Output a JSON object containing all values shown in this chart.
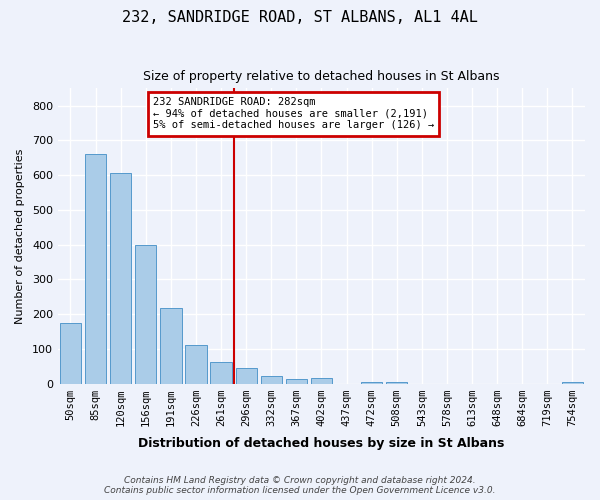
{
  "title": "232, SANDRIDGE ROAD, ST ALBANS, AL1 4AL",
  "subtitle": "Size of property relative to detached houses in St Albans",
  "xlabel": "Distribution of detached houses by size in St Albans",
  "ylabel": "Number of detached properties",
  "bar_labels": [
    "50sqm",
    "85sqm",
    "120sqm",
    "156sqm",
    "191sqm",
    "226sqm",
    "261sqm",
    "296sqm",
    "332sqm",
    "367sqm",
    "402sqm",
    "437sqm",
    "472sqm",
    "508sqm",
    "543sqm",
    "578sqm",
    "613sqm",
    "648sqm",
    "684sqm",
    "719sqm",
    "754sqm"
  ],
  "bar_values": [
    175,
    660,
    605,
    400,
    218,
    110,
    62,
    45,
    22,
    12,
    15,
    0,
    5,
    3,
    0,
    0,
    0,
    0,
    0,
    0,
    5
  ],
  "bar_color": "#aacce8",
  "bar_edge_color": "#5599cc",
  "ylim": [
    0,
    850
  ],
  "yticks": [
    0,
    100,
    200,
    300,
    400,
    500,
    600,
    700,
    800
  ],
  "vline_x": 6.5,
  "vline_color": "#cc0000",
  "box_text_line1": "232 SANDRIDGE ROAD: 282sqm",
  "box_text_line2": "← 94% of detached houses are smaller (2,191)",
  "box_text_line3": "5% of semi-detached houses are larger (126) →",
  "box_color": "#cc0000",
  "footer_line1": "Contains HM Land Registry data © Crown copyright and database right 2024.",
  "footer_line2": "Contains public sector information licensed under the Open Government Licence v3.0.",
  "bg_color": "#eef2fb",
  "grid_color": "#ffffff"
}
